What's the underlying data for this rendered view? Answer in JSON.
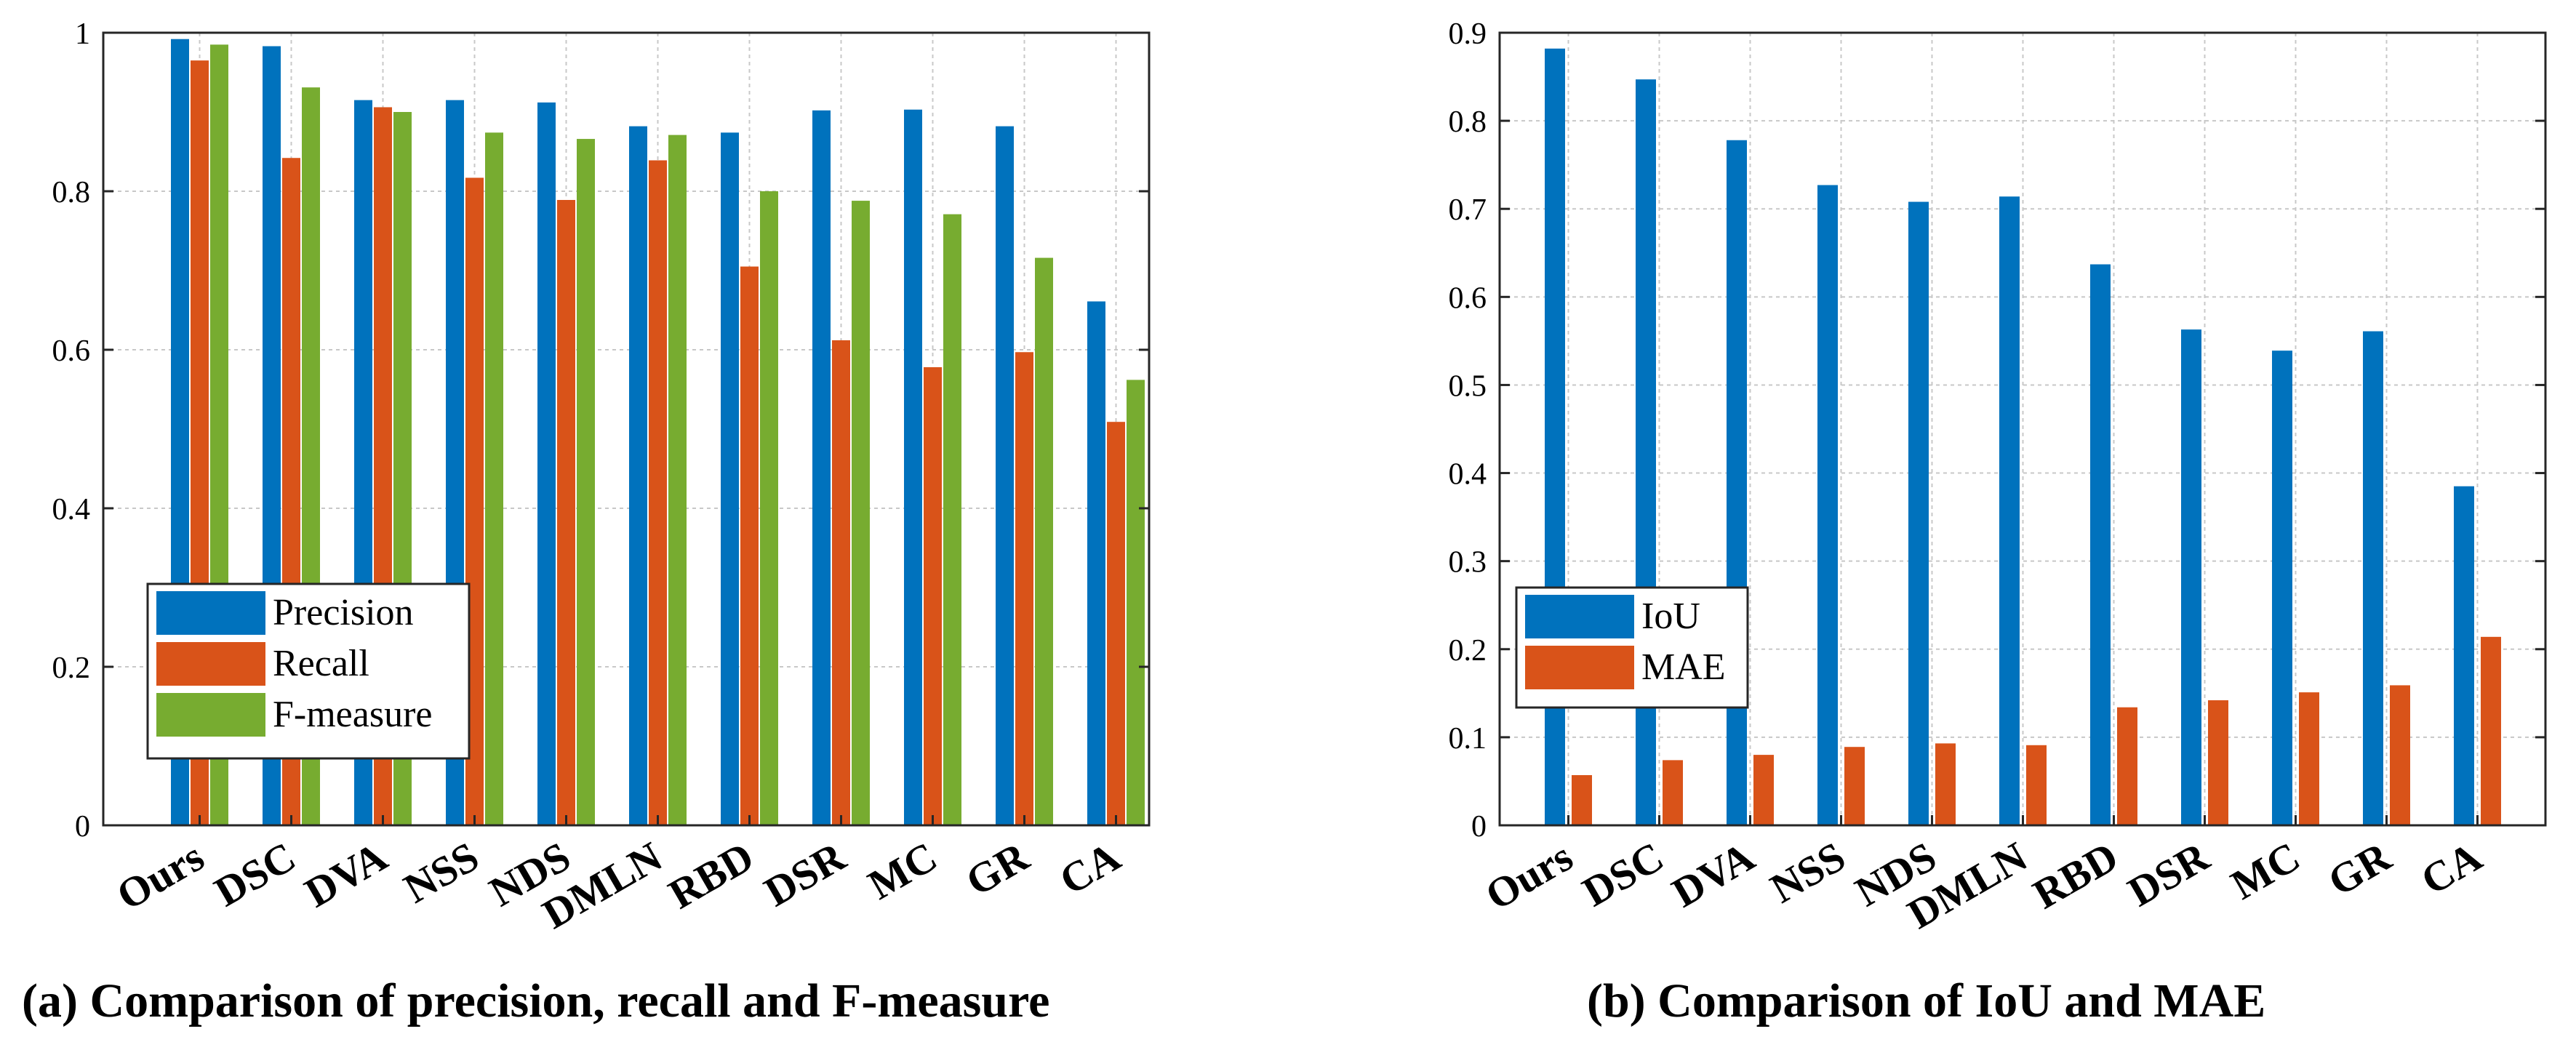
{
  "chart_data": [
    {
      "type": "bar",
      "title": "(a) Comparison of precision, recall and F-measure",
      "xlabel": "",
      "ylabel": "",
      "ylim": [
        0,
        1
      ],
      "yticks": [
        0,
        0.2,
        0.4,
        0.6,
        0.8,
        1
      ],
      "ytick_labels": [
        "0",
        "0.2",
        "0.4",
        "0.6",
        "0.8",
        "1"
      ],
      "grid": true,
      "legend_position": "bottom-left",
      "categories": [
        "Ours",
        "DSC",
        "DVA",
        "NSS",
        "NDS",
        "DMLN",
        "RBD",
        "DSR",
        "MC",
        "GR",
        "CA"
      ],
      "series": [
        {
          "name": "Precision",
          "color": "#0072BD",
          "values": [
            0.992,
            0.983,
            0.915,
            0.915,
            0.912,
            0.882,
            0.874,
            0.902,
            0.903,
            0.882,
            0.661
          ]
        },
        {
          "name": "Recall",
          "color": "#D95319",
          "values": [
            0.965,
            0.842,
            0.906,
            0.817,
            0.789,
            0.839,
            0.705,
            0.612,
            0.578,
            0.597,
            0.509
          ]
        },
        {
          "name": "F-measure",
          "color": "#77AC30",
          "values": [
            0.985,
            0.931,
            0.9,
            0.874,
            0.866,
            0.871,
            0.8,
            0.788,
            0.771,
            0.716,
            0.562
          ]
        }
      ]
    },
    {
      "type": "bar",
      "title": "(b) Comparison of IoU and MAE",
      "xlabel": "",
      "ylabel": "",
      "ylim": [
        0,
        0.9
      ],
      "yticks": [
        0,
        0.1,
        0.2,
        0.3,
        0.4,
        0.5,
        0.6,
        0.7,
        0.8,
        0.9
      ],
      "ytick_labels": [
        "0",
        "0.1",
        "0.2",
        "0.3",
        "0.4",
        "0.5",
        "0.6",
        "0.7",
        "0.8",
        "0.9"
      ],
      "grid": true,
      "legend_position": "bottom-left",
      "categories": [
        "Ours",
        "DSC",
        "DVA",
        "NSS",
        "NDS",
        "DMLN",
        "RBD",
        "DSR",
        "MC",
        "GR",
        "CA"
      ],
      "series": [
        {
          "name": "IoU",
          "color": "#0072BD",
          "values": [
            0.882,
            0.847,
            0.778,
            0.727,
            0.708,
            0.714,
            0.637,
            0.563,
            0.539,
            0.561,
            0.385
          ]
        },
        {
          "name": "MAE",
          "color": "#D95319",
          "values": [
            0.057,
            0.074,
            0.08,
            0.089,
            0.093,
            0.091,
            0.134,
            0.142,
            0.151,
            0.159,
            0.214
          ]
        }
      ]
    }
  ]
}
